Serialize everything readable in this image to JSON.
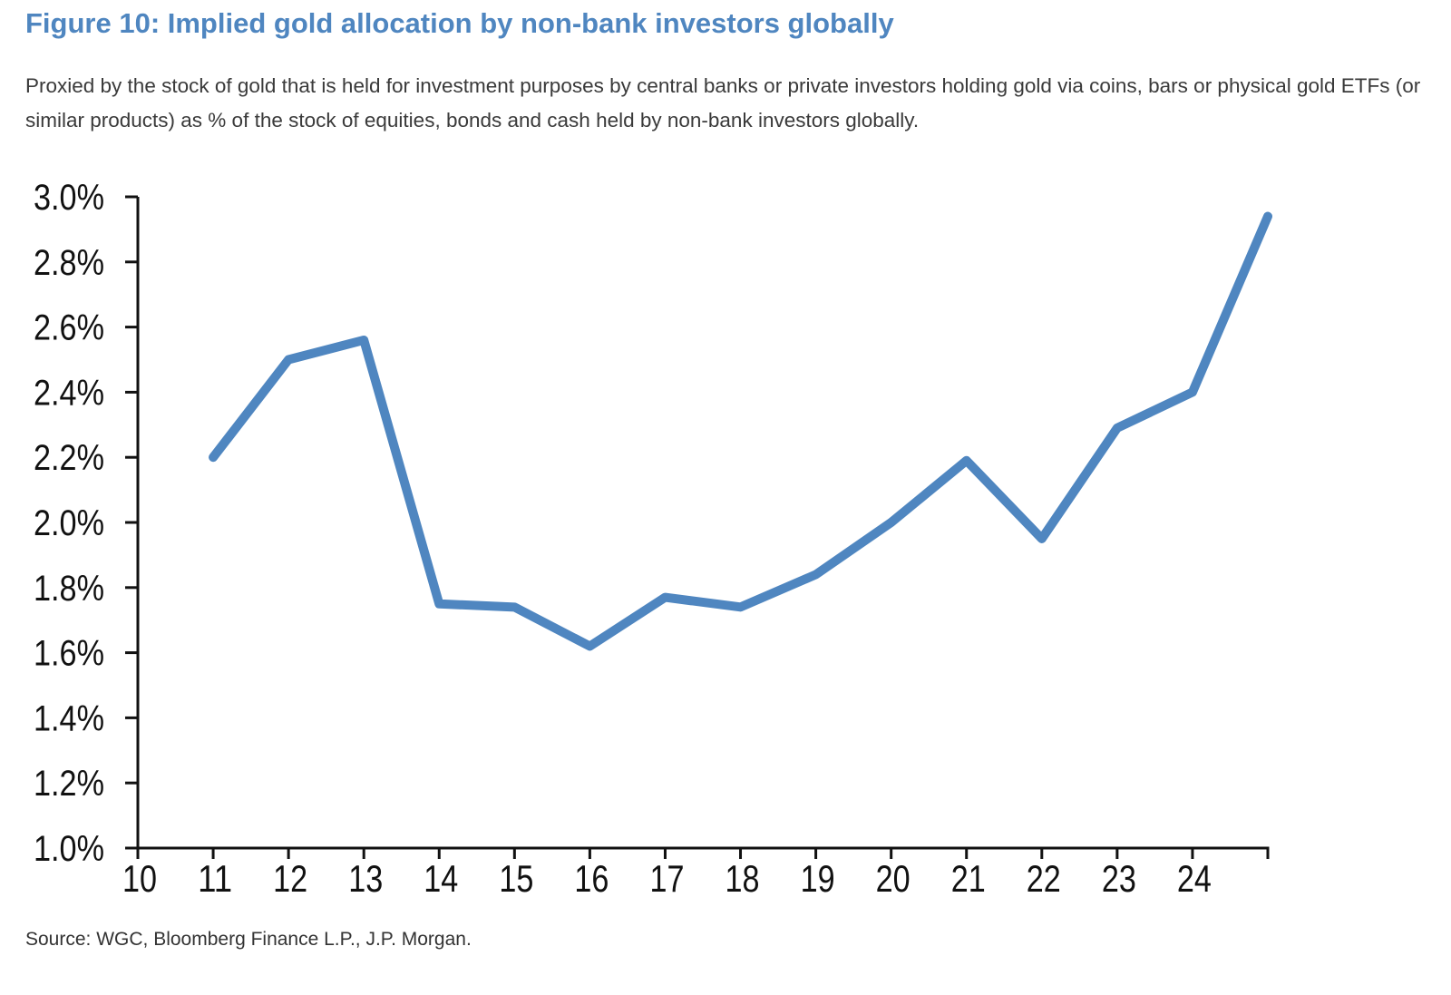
{
  "figure": {
    "title": "Figure 10: Implied gold allocation by non-bank investors globally",
    "subtitle": "Proxied by the stock of gold that is held for investment purposes by central banks or private investors holding gold via coins, bars or physical gold ETFs (or similar products) as % of the stock of equities, bonds and cash held by non-bank investors globally.",
    "source": "Source: WGC, Bloomberg Finance L.P., J.P. Morgan."
  },
  "colors": {
    "title": "#4f86c0",
    "line": "#4f86c0",
    "axis": "#111111"
  },
  "chart_data": {
    "type": "line",
    "title": "",
    "xlabel": "",
    "ylabel": "",
    "x_ticks": [
      "10",
      "11",
      "12",
      "13",
      "14",
      "15",
      "16",
      "17",
      "18",
      "19",
      "20",
      "21",
      "22",
      "23",
      "24"
    ],
    "y_ticks": [
      "1.0%",
      "1.2%",
      "1.4%",
      "1.6%",
      "1.8%",
      "2.0%",
      "2.2%",
      "2.4%",
      "2.6%",
      "2.8%",
      "3.0%"
    ],
    "xlim": [
      10,
      25
    ],
    "ylim": [
      1.0,
      3.0
    ],
    "grid": false,
    "legend": "none",
    "series": [
      {
        "x": [
          11,
          12,
          13,
          14,
          15,
          16,
          17,
          18,
          19,
          20,
          21,
          22,
          23,
          24,
          25
        ],
        "values": [
          2.2,
          2.5,
          2.56,
          1.75,
          1.74,
          1.62,
          1.77,
          1.74,
          1.84,
          2.0,
          2.19,
          1.95,
          2.29,
          2.4,
          2.94
        ]
      }
    ]
  }
}
